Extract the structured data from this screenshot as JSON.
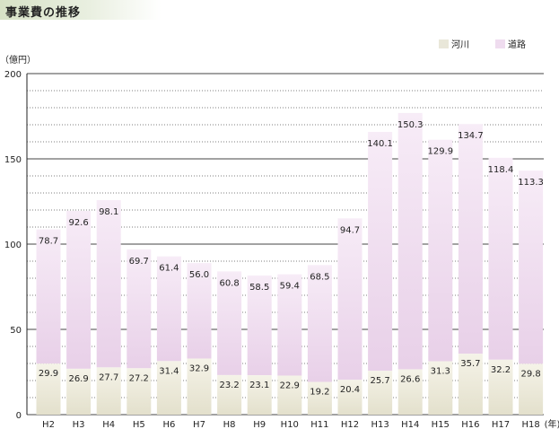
{
  "header": {
    "title": "事業費の推移"
  },
  "chart_data": {
    "type": "bar",
    "stacked": true,
    "y_unit_label": "（億円）",
    "x_unit_label": "(年)",
    "categories": [
      "H2",
      "H3",
      "H4",
      "H5",
      "H6",
      "H7",
      "H8",
      "H9",
      "H10",
      "H11",
      "H12",
      "H13",
      "H14",
      "H15",
      "H16",
      "H17",
      "H18"
    ],
    "series": [
      {
        "name": "河川",
        "color": "#e9e7d9",
        "values": [
          29.9,
          26.9,
          27.7,
          27.2,
          31.4,
          32.9,
          23.2,
          23.1,
          22.9,
          19.2,
          20.4,
          25.7,
          26.6,
          31.3,
          35.7,
          32.2,
          29.8
        ]
      },
      {
        "name": "道路",
        "color": "#efdcef",
        "values": [
          78.7,
          92.6,
          98.1,
          69.7,
          61.4,
          56.0,
          60.8,
          58.5,
          59.4,
          68.5,
          94.7,
          140.1,
          150.3,
          129.9,
          134.7,
          118.4,
          113.3
        ]
      }
    ],
    "river_labels": [
      "29.9",
      "26.9",
      "27.7",
      "27.2",
      "31.4",
      "32.9",
      "23.2",
      "23.1",
      "22.9",
      "19.2",
      "20.4",
      "25.7",
      "26.6",
      "31.3",
      "35.7",
      "32.2",
      "29.8"
    ],
    "road_labels": [
      "78.7",
      "92.6",
      "98.1",
      "69.7",
      "61.4",
      "56.0",
      "60.8",
      "58.5",
      "59.4",
      "68.5",
      "94.7",
      "140.1",
      "150.3",
      "129.9",
      "134.7",
      "118.4",
      "113.3"
    ],
    "ylim": [
      0,
      200
    ],
    "yticks": [
      0,
      50,
      100,
      150,
      200
    ],
    "legend_position": "top-right",
    "grid": true
  }
}
